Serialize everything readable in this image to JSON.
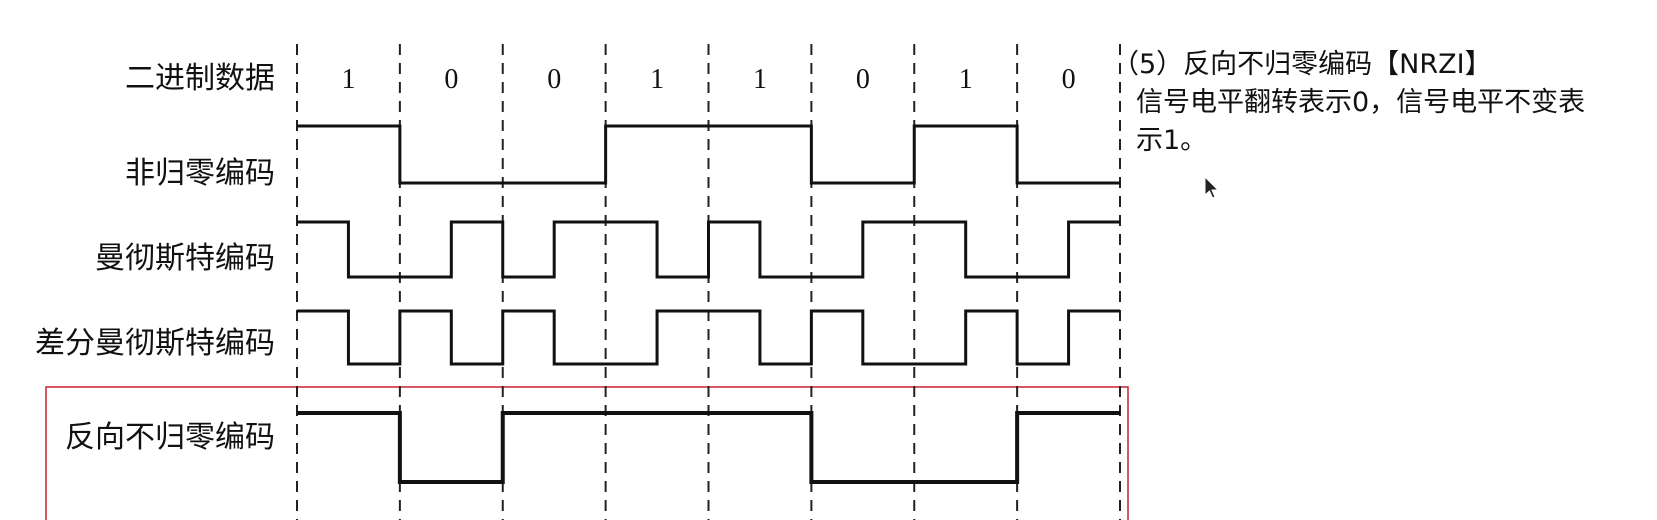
{
  "diagram": {
    "row_labels": {
      "binary": "二进制数据",
      "nrz": "非归零编码",
      "manchester": "曼彻斯特编码",
      "diff_manchester": "差分曼彻斯特编码",
      "nrzi": "反向不归零编码"
    },
    "bits": [
      "1",
      "0",
      "0",
      "1",
      "1",
      "0",
      "1",
      "0"
    ],
    "signals": {
      "nrz": [
        1,
        0,
        0,
        1,
        1,
        0,
        1,
        0
      ],
      "manchester": [
        [
          1,
          0
        ],
        [
          0,
          1
        ],
        [
          0,
          1
        ],
        [
          1,
          0
        ],
        [
          1,
          0
        ],
        [
          0,
          1
        ],
        [
          1,
          0
        ],
        [
          0,
          1
        ]
      ],
      "diff_manchester": [
        [
          1,
          0
        ],
        [
          1,
          0
        ],
        [
          1,
          0
        ],
        [
          0,
          1
        ],
        [
          1,
          0
        ],
        [
          1,
          0
        ],
        [
          0,
          1
        ],
        [
          0,
          1
        ]
      ],
      "nrzi": [
        1,
        0,
        1,
        1,
        1,
        0,
        0,
        1
      ]
    },
    "colors": {
      "signal": "#111111",
      "divider": "#222222",
      "highlight_box": "#c8202b"
    }
  },
  "description": {
    "title": "（5）反向不归零编码【NRZI】",
    "body": "信号电平翻转表示0，信号电平不变表示1。"
  }
}
